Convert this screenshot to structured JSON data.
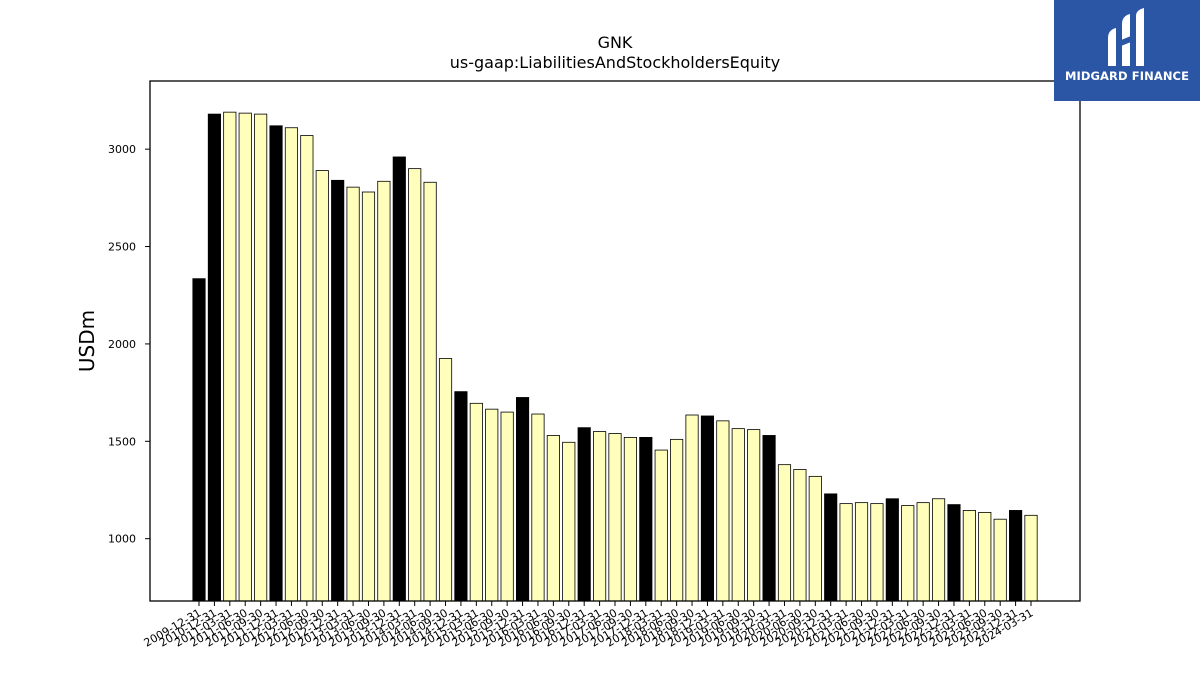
{
  "brand": {
    "name": "MIDGARD FINANCE",
    "colors": {
      "logo_bg": "#2b56a6",
      "logo_fg": "#ffffff"
    }
  },
  "colors": {
    "bar_black": "#000000",
    "bar_yellow": "#ffffbb",
    "bar_edge": "#000000"
  },
  "chart_data": {
    "type": "bar",
    "title": "GNK",
    "subtitle": "us-gaap:LiabilitiesAndStockholdersEquity",
    "ylabel": "USDm",
    "xlabel": "",
    "ylim": [
      680,
      3350
    ],
    "yticks": [
      1000,
      1500,
      2000,
      2500,
      3000
    ],
    "grid": false,
    "categories": [
      "2009-12-31",
      "2010-12-31",
      "2011-03-31",
      "2011-06-30",
      "2011-09-30",
      "2011-12-31",
      "2012-03-31",
      "2012-06-30",
      "2012-09-30",
      "2012-12-31",
      "2013-03-31",
      "2013-06-30",
      "2013-09-30",
      "2013-12-31",
      "2014-03-31",
      "2014-06-30",
      "2014-09-30",
      "2014-12-31",
      "2015-03-31",
      "2015-06-30",
      "2015-09-30",
      "2015-12-31",
      "2016-03-31",
      "2016-06-30",
      "2016-09-30",
      "2016-12-31",
      "2017-03-31",
      "2017-06-30",
      "2017-09-30",
      "2017-12-31",
      "2018-03-31",
      "2018-06-30",
      "2018-09-30",
      "2018-12-31",
      "2019-03-31",
      "2019-06-30",
      "2019-09-30",
      "2019-12-31",
      "2020-03-31",
      "2020-06-30",
      "2020-09-30",
      "2020-12-31",
      "2021-03-31",
      "2021-06-30",
      "2021-09-30",
      "2021-12-31",
      "2022-03-31",
      "2022-06-30",
      "2022-09-30",
      "2022-12-31",
      "2023-03-31",
      "2023-06-30",
      "2023-09-30",
      "2023-12-31",
      "2024-03-31"
    ],
    "values": [
      2335,
      3180,
      3190,
      3185,
      3180,
      3120,
      3110,
      3070,
      2890,
      2840,
      2805,
      2780,
      2835,
      2960,
      2900,
      2830,
      1925,
      1755,
      1695,
      1665,
      1650,
      1725,
      1640,
      1530,
      1495,
      1570,
      1550,
      1540,
      1520,
      1520,
      1455,
      1510,
      1635,
      1630,
      1605,
      1565,
      1560,
      1530,
      1380,
      1355,
      1320,
      1230,
      1180,
      1185,
      1180,
      1205,
      1170,
      1185,
      1205,
      1175,
      1145,
      1135,
      1100,
      1145,
      1120
    ],
    "highlight_color_by_period": {
      "12-31": "black",
      "other": "light-yellow"
    }
  }
}
